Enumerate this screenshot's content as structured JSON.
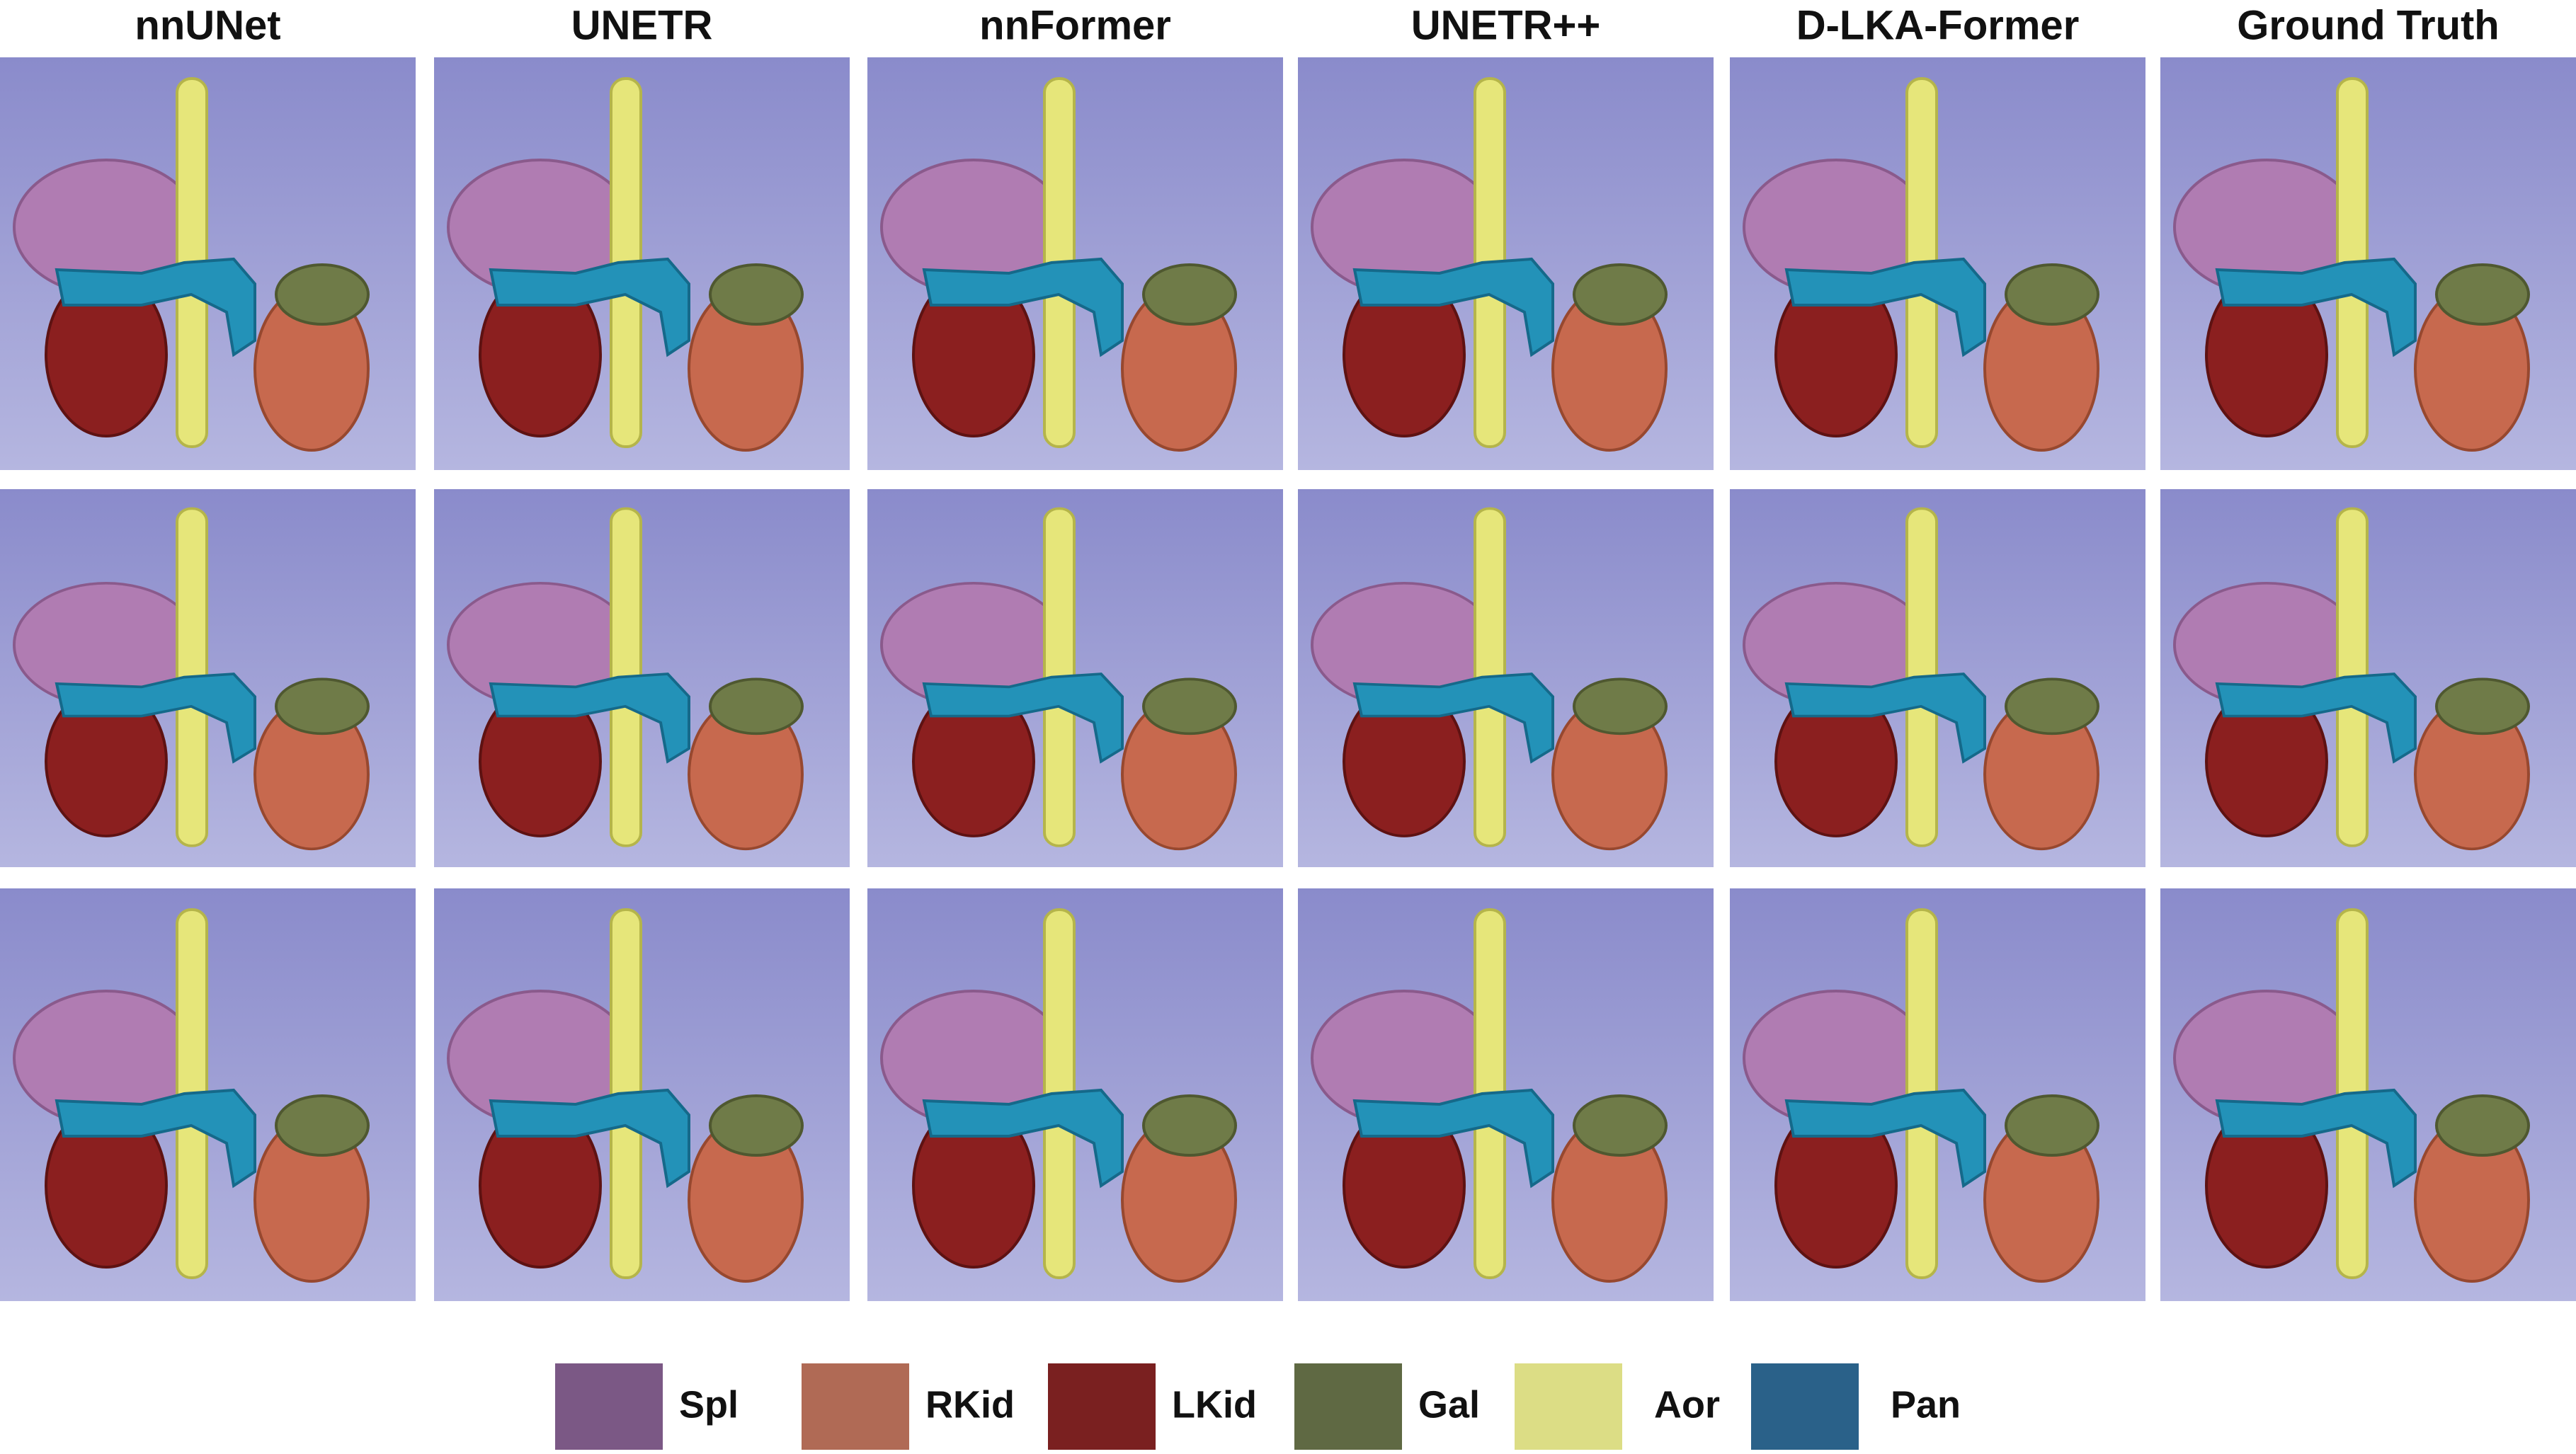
{
  "columns": [
    "nnUNet",
    "UNETR",
    "nnFormer",
    "UNETR++",
    "D-LKA-Former",
    "Ground Truth"
  ],
  "legend": [
    {
      "label": "Spl",
      "color": "#7b5885"
    },
    {
      "label": "RKid",
      "color": "#b06a55"
    },
    {
      "label": "LKid",
      "color": "#7a2020"
    },
    {
      "label": "Gal",
      "color": "#5f6943"
    },
    {
      "label": "Aor",
      "color": "#dcdd85"
    },
    {
      "label": "Pan",
      "color": "#2a6189"
    }
  ]
}
